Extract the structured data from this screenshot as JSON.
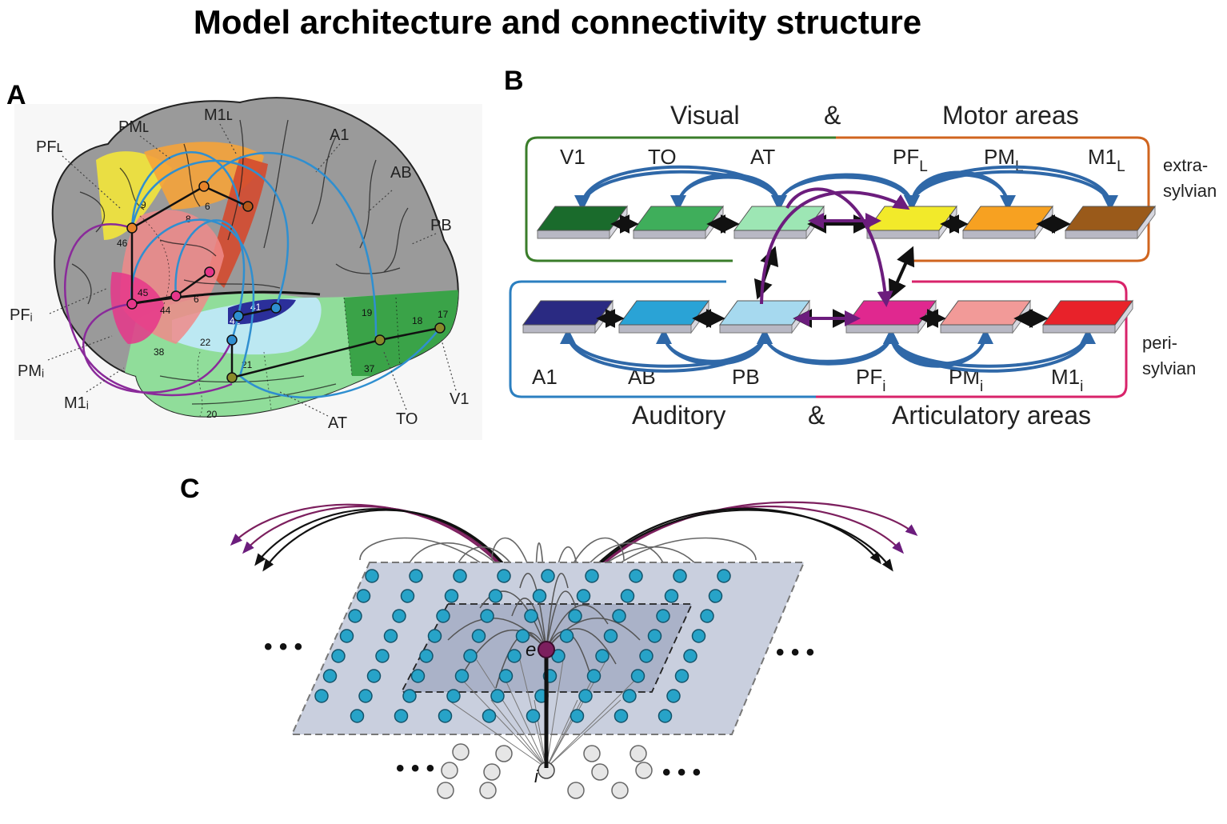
{
  "title": "Model architecture and connectivity structure",
  "panels": {
    "a": {
      "letter": "A",
      "area_labels": [
        "PMʟ",
        "M1ʟ",
        "A1",
        "PFʟ",
        "AB",
        "PB",
        "PFᵢ",
        "PMᵢ",
        "M1ᵢ",
        "AT",
        "TO",
        "V1"
      ],
      "brodmann_numbers": [
        "9",
        "6",
        "4",
        "46",
        "8",
        "45",
        "44",
        "6",
        "41",
        "42",
        "22",
        "38",
        "21",
        "19",
        "18",
        "17",
        "37",
        "20"
      ]
    },
    "b": {
      "letter": "B",
      "top_left_caption": "Visual",
      "top_amp": "&",
      "top_right_caption": "Motor areas",
      "bottom_left_caption": "Auditory",
      "bottom_amp": "&",
      "bottom_right_caption": "Articulatory areas",
      "side_top": [
        "extra-",
        "sylvian"
      ],
      "side_bottom": [
        "peri-",
        "sylvian"
      ],
      "top_areas": [
        {
          "name": "V1",
          "sub": "",
          "color": "#1a6b2c"
        },
        {
          "name": "TO",
          "sub": "",
          "color": "#3fae5b"
        },
        {
          "name": "AT",
          "sub": "",
          "color": "#9de6b4"
        },
        {
          "name": "PF",
          "sub": "L",
          "color": "#f2ea2a"
        },
        {
          "name": "PM",
          "sub": "L",
          "color": "#f7a121"
        },
        {
          "name": "M1",
          "sub": "L",
          "color": "#9a5a1a"
        }
      ],
      "bottom_areas": [
        {
          "name": "A1",
          "sub": "",
          "color": "#2a2a82"
        },
        {
          "name": "AB",
          "sub": "",
          "color": "#2aa3d6"
        },
        {
          "name": "PB",
          "sub": "",
          "color": "#a6d9ef"
        },
        {
          "name": "PF",
          "sub": "i",
          "color": "#e0288f"
        },
        {
          "name": "PM",
          "sub": "i",
          "color": "#f29a98"
        },
        {
          "name": "M1",
          "sub": "i",
          "color": "#e8222a"
        }
      ],
      "colors": {
        "visual_frame": "#3a7d2a",
        "motor_frame": "#d0651f",
        "auditory_frame": "#2b7fc0",
        "articulatory_frame": "#d8236a",
        "blue_arrow": "#2f68a8",
        "purple_arrow": "#6c1d7d"
      }
    },
    "c": {
      "letter": "C",
      "exc_label": "e",
      "inh_label": "i",
      "ellipsis": "• • •",
      "colors": {
        "neuron": "#27a3c8",
        "neuron_edge": "#14536a",
        "sheet": "#c9cfde",
        "inner_sheet": "#aab2c8",
        "exc": "#7c1f5e",
        "inh": "#e6e6e6"
      }
    }
  }
}
